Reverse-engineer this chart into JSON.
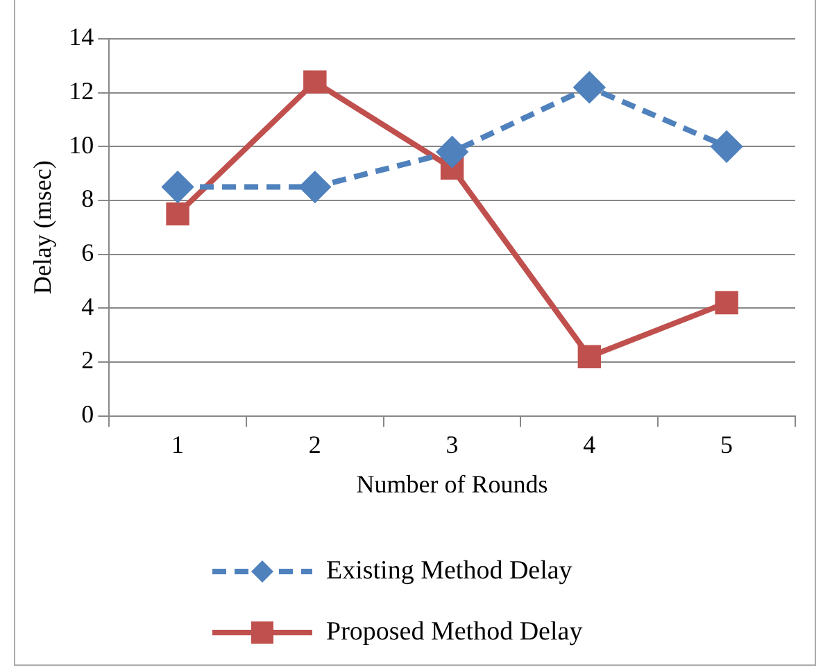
{
  "chart_data": {
    "type": "line",
    "xlabel": "Number of Rounds",
    "ylabel": "Delay (msec)",
    "categories": [
      "1",
      "2",
      "3",
      "4",
      "5"
    ],
    "series": [
      {
        "name": "Existing Method Delay",
        "color": "#4f81bd",
        "values": [
          8.5,
          8.5,
          9.8,
          12.2,
          10.0
        ],
        "marker": "diamond",
        "line_style": "dashed"
      },
      {
        "name": "Proposed Method Delay",
        "color": "#c0504d",
        "values": [
          7.5,
          12.4,
          9.2,
          2.2,
          4.2
        ],
        "marker": "square",
        "line_style": "solid"
      }
    ],
    "ylim": [
      0,
      14
    ],
    "yticks": [
      0,
      2,
      4,
      6,
      8,
      10,
      12,
      14
    ],
    "grid": "y",
    "legend": "bottom"
  }
}
